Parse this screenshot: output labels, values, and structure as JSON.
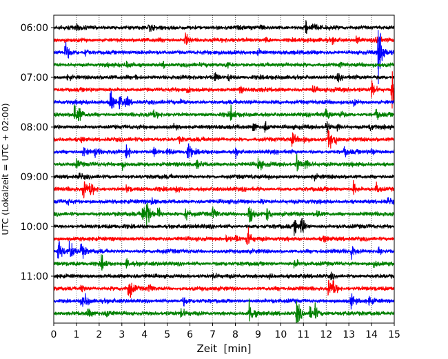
{
  "chart_data": {
    "type": "line",
    "title": "",
    "xlabel": "Zeit  [min]",
    "ylabel": "UTC (Lokalzeit = UTC + 02:00)",
    "xlim": [
      0,
      15
    ],
    "x_ticks": [
      "0",
      "1",
      "2",
      "3",
      "4",
      "5",
      "6",
      "7",
      "8",
      "9",
      "10",
      "11",
      "12",
      "13",
      "14",
      "15"
    ],
    "y_tick_labels": [
      "06:00",
      "07:00",
      "08:00",
      "09:00",
      "10:00",
      "11:00"
    ],
    "grid": "vertical dotted",
    "trace_interval_minutes": 15,
    "color_cycle": [
      "#000000",
      "#ff0000",
      "#0000ff",
      "#008000"
    ],
    "series": [
      {
        "start": "06:00",
        "events": [
          [
            1.0,
            3
          ],
          [
            4.2,
            4
          ],
          [
            9.1,
            3
          ],
          [
            11.1,
            8
          ],
          [
            11.4,
            4
          ]
        ]
      },
      {
        "start": "06:15",
        "events": [
          [
            5.8,
            8
          ],
          [
            9.3,
            3
          ],
          [
            12.3,
            3
          ],
          [
            13.3,
            5
          ],
          [
            14.2,
            5
          ]
        ]
      },
      {
        "start": "06:30",
        "events": [
          [
            0.5,
            12
          ],
          [
            1.4,
            4
          ],
          [
            9.0,
            3
          ],
          [
            14.3,
            40
          ]
        ]
      },
      {
        "start": "06:45",
        "events": [
          [
            3.2,
            3
          ],
          [
            4.8,
            3
          ],
          [
            7.6,
            3
          ],
          [
            12.6,
            3
          ]
        ]
      },
      {
        "start": "07:00",
        "events": [
          [
            0.6,
            3
          ],
          [
            3.6,
            3
          ],
          [
            7.1,
            5
          ],
          [
            7.7,
            4
          ],
          [
            12.5,
            3
          ]
        ]
      },
      {
        "start": "07:15",
        "events": [
          [
            5.9,
            3
          ],
          [
            8.2,
            3
          ],
          [
            11.4,
            4
          ],
          [
            14.0,
            12
          ],
          [
            14.9,
            22
          ]
        ]
      },
      {
        "start": "07:30",
        "events": [
          [
            2.5,
            14
          ],
          [
            2.9,
            8
          ],
          [
            3.2,
            6
          ],
          [
            5.6,
            3
          ],
          [
            9.8,
            3
          ],
          [
            13.2,
            3
          ]
        ]
      },
      {
        "start": "07:45",
        "events": [
          [
            0.9,
            14
          ],
          [
            1.1,
            5
          ],
          [
            4.4,
            4
          ],
          [
            7.8,
            7
          ],
          [
            12.0,
            7
          ],
          [
            12.6,
            5
          ],
          [
            14.2,
            5
          ]
        ]
      },
      {
        "start": "08:00",
        "events": [
          [
            5.3,
            3
          ],
          [
            8.8,
            6
          ],
          [
            9.3,
            7
          ],
          [
            12.0,
            6
          ],
          [
            12.5,
            4
          ],
          [
            13.9,
            4
          ]
        ]
      },
      {
        "start": "08:15",
        "events": [
          [
            1.2,
            3
          ],
          [
            5.5,
            3
          ],
          [
            10.5,
            7
          ],
          [
            11.0,
            5
          ],
          [
            12.1,
            12
          ],
          [
            12.4,
            4
          ]
        ]
      },
      {
        "start": "08:30",
        "events": [
          [
            1.3,
            7
          ],
          [
            1.8,
            5
          ],
          [
            3.2,
            9
          ],
          [
            4.4,
            5
          ],
          [
            5.0,
            4
          ],
          [
            5.9,
            9
          ],
          [
            8.0,
            4
          ],
          [
            12.8,
            4
          ],
          [
            14.0,
            4
          ]
        ]
      },
      {
        "start": "08:45",
        "events": [
          [
            1.0,
            4
          ],
          [
            3.0,
            4
          ],
          [
            6.3,
            4
          ],
          [
            9.0,
            7
          ],
          [
            10.7,
            11
          ],
          [
            11.1,
            7
          ]
        ]
      },
      {
        "start": "09:00",
        "events": [
          [
            1.1,
            3
          ],
          [
            9.5,
            3
          ],
          [
            11.4,
            3
          ]
        ]
      },
      {
        "start": "09:15",
        "events": [
          [
            1.3,
            12
          ],
          [
            1.6,
            8
          ],
          [
            3.2,
            4
          ],
          [
            5.4,
            3
          ],
          [
            13.2,
            7
          ],
          [
            14.2,
            6
          ]
        ]
      },
      {
        "start": "09:30",
        "events": [
          [
            0.6,
            3
          ],
          [
            4.3,
            3
          ],
          [
            9.1,
            3
          ],
          [
            14.7,
            3
          ]
        ]
      },
      {
        "start": "09:45",
        "events": [
          [
            3.9,
            10
          ],
          [
            4.1,
            16
          ],
          [
            4.6,
            7
          ],
          [
            5.8,
            10
          ],
          [
            7.0,
            7
          ],
          [
            8.6,
            16
          ],
          [
            9.4,
            7
          ],
          [
            11.6,
            5
          ]
        ]
      },
      {
        "start": "10:00",
        "events": [
          [
            10.6,
            8
          ],
          [
            10.9,
            13
          ]
        ]
      },
      {
        "start": "10:15",
        "events": [
          [
            7.6,
            4
          ],
          [
            8.0,
            5
          ],
          [
            8.5,
            15
          ],
          [
            11.9,
            4
          ]
        ]
      },
      {
        "start": "10:30",
        "events": [
          [
            0.2,
            16
          ],
          [
            0.7,
            12
          ],
          [
            1.2,
            9
          ],
          [
            13.1,
            7
          ],
          [
            14.3,
            5
          ]
        ]
      },
      {
        "start": "10:45",
        "events": [
          [
            2.1,
            9
          ],
          [
            3.2,
            4
          ],
          [
            10.6,
            5
          ],
          [
            14.1,
            4
          ]
        ]
      },
      {
        "start": "11:00",
        "events": [
          [
            7.0,
            3
          ],
          [
            9.5,
            3
          ],
          [
            12.2,
            3
          ]
        ]
      },
      {
        "start": "11:15",
        "events": [
          [
            1.2,
            5
          ],
          [
            3.3,
            15
          ],
          [
            4.2,
            5
          ],
          [
            12.1,
            10
          ],
          [
            12.3,
            8
          ]
        ]
      },
      {
        "start": "11:30",
        "events": [
          [
            1.2,
            6
          ],
          [
            1.4,
            5
          ],
          [
            5.7,
            4
          ],
          [
            13.1,
            7
          ],
          [
            13.9,
            4
          ]
        ]
      },
      {
        "start": "11:45",
        "events": [
          [
            1.5,
            4
          ],
          [
            2.3,
            5
          ],
          [
            5.6,
            6
          ],
          [
            8.6,
            16
          ],
          [
            10.7,
            18
          ],
          [
            11.3,
            8
          ],
          [
            11.5,
            7
          ]
        ]
      }
    ]
  }
}
